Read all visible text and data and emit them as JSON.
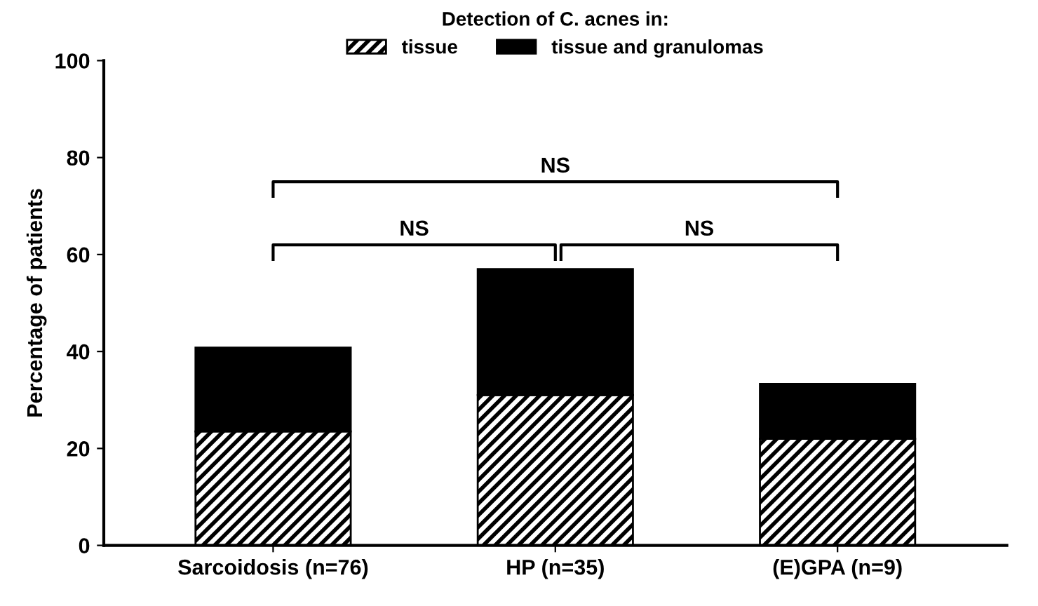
{
  "chart_data": {
    "type": "bar",
    "stacked": true,
    "categories": [
      "Sarcoidosis (n=76)",
      "HP (n=35)",
      "(E)GPA (n=9)"
    ],
    "ylabel": "Percentage of patients",
    "legend_title": "Detection of C. acnes in:",
    "legend": "top",
    "series": [
      {
        "name": "tissue",
        "color": "#000000",
        "values": [
          23.5,
          31,
          22
        ]
      },
      {
        "name": "tissue and granulomas",
        "color": "#000000",
        "values": [
          17.3,
          26,
          11.3
        ]
      }
    ],
    "ylim": [
      0,
      100
    ],
    "yticks": [
      0,
      20,
      40,
      60,
      80,
      100
    ],
    "grid": false,
    "annotations": [
      "NS",
      "NS",
      "NS"
    ]
  }
}
